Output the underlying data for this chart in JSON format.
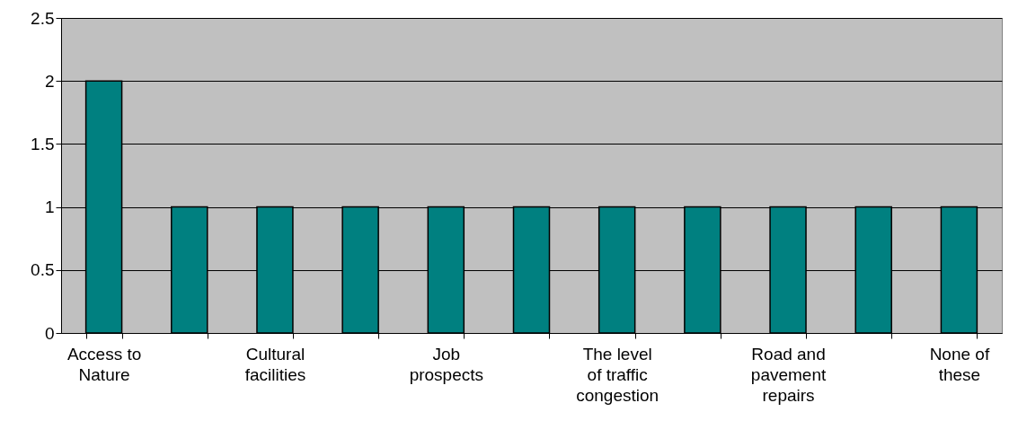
{
  "chart_data": {
    "type": "bar",
    "categories": [
      "Access to Nature",
      null,
      "Cultural facilities",
      null,
      "Job prospects",
      null,
      "The level of traffic congestion",
      null,
      "Road and pavement repairs",
      null,
      "None of these"
    ],
    "values": [
      2,
      1,
      1,
      1,
      1,
      1,
      1,
      1,
      1,
      1,
      1
    ],
    "color": "#008080",
    "ylim": [
      0,
      2.5
    ],
    "yticks": [
      0,
      0.5,
      1,
      1.5,
      2,
      2.5
    ],
    "grid": "y"
  }
}
